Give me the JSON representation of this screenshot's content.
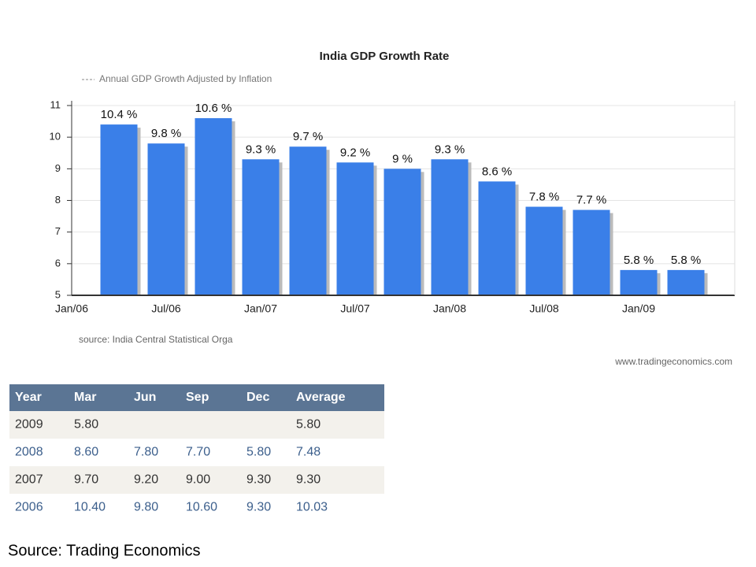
{
  "chart_data": {
    "type": "bar",
    "title": "India GDP Growth Rate",
    "legend": "Annual GDP Growth Adjusted by Inflation",
    "categories": [
      "Jan/06",
      null,
      "Jul/06",
      null,
      "Jan/07",
      null,
      "Jul/07",
      null,
      "Jan/08",
      null,
      "Jul/08",
      null,
      "Jan/09",
      null
    ],
    "values": [
      null,
      10.4,
      9.8,
      10.6,
      9.3,
      9.7,
      9.2,
      9,
      9.3,
      8.6,
      7.8,
      7.7,
      5.8,
      5.8
    ],
    "value_labels": [
      null,
      "10.4 %",
      "9.8 %",
      "10.6 %",
      "9.3 %",
      "9.7 %",
      "9.2 %",
      "9 %",
      "9.3 %",
      "8.6 %",
      "7.8 %",
      "7.7 %",
      "5.8 %",
      "5.8 %"
    ],
    "color": "#3a7fe8",
    "ylim": [
      5,
      11
    ],
    "yticks": [
      5,
      6,
      7,
      8,
      9,
      10,
      11
    ],
    "grid": true,
    "source": "source: India Central Statistical Orga",
    "watermark": "www.tradingeconomics.com"
  },
  "table": {
    "header": [
      "Year",
      "Mar",
      "Jun",
      "Sep",
      "Dec",
      "Average"
    ],
    "rows": [
      [
        "2009",
        "5.80",
        null,
        null,
        null,
        "5.80"
      ],
      [
        "2008",
        "8.60",
        "7.80",
        "7.70",
        "5.80",
        "7.48"
      ],
      [
        "2007",
        "9.70",
        "9.20",
        "9.00",
        "9.30",
        "9.30"
      ],
      [
        "2006",
        "10.40",
        "9.80",
        "10.60",
        "9.30",
        "10.03"
      ]
    ]
  },
  "footer": "Source: Trading Economics"
}
